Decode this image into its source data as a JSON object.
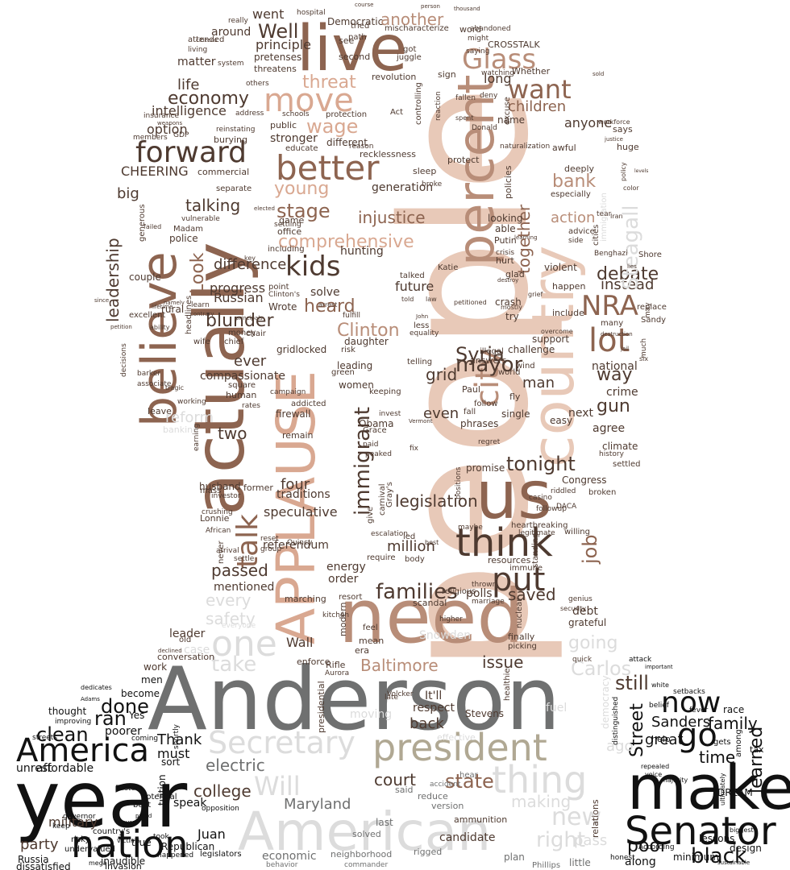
{
  "words": {
    "people": "people",
    "anderson": "Anderson",
    "need": "need",
    "year": "year",
    "make": "make",
    "actually": "actually",
    "applause": "APPLAUSE",
    "american": "American",
    "country": "country",
    "us": "us",
    "live": "live",
    "believe": "believe",
    "percent": "percent",
    "senator": "Senator",
    "president": "president",
    "secretary": "Secretary",
    "nation": "nation",
    "think": "think",
    "america": "America",
    "thing": "thing",
    "one": "one",
    "go": "go",
    "now": "now",
    "move": "move",
    "better": "better",
    "forward": "forward",
    "lot": "lot",
    "nra": "NRA",
    "kids": "kids",
    "put": "put",
    "city": "city",
    "immigrant": "immigrant",
    "talk": "talk",
    "glass": "Glass",
    "want": "want",
    "well": "Well",
    "wage": "wage",
    "threat": "threat",
    "economy": "economy",
    "talking": "talking",
    "comprehensive": "comprehensive",
    "stage": "stage",
    "young": "young",
    "injustice": "injustice",
    "heard": "heard",
    "clinton": "Clinton",
    "syria": "Syria",
    "mayor": "mayor",
    "debate": "debate",
    "instead": "instead",
    "steagall": "Steagall",
    "bank": "bank",
    "action": "action",
    "together": "together",
    "children": "children",
    "leadership": "leadership",
    "look": "Look",
    "blunder": "blunder",
    "difference": "difference",
    "progress": "progress",
    "russian": "Russian",
    "future": "future",
    "solve": "solve",
    "grid": "grid",
    "even": "even",
    "families": "families",
    "legislation": "legislation",
    "tonight": "tonight",
    "job": "job",
    "million": "million",
    "passed": "passed",
    "every": "every",
    "safety": "safety",
    "saved": "saved",
    "wall": "Wall",
    "baltimore": "Baltimore",
    "issue": "issue",
    "going": "going",
    "carlos": "Carlos",
    "still": "still",
    "take": "take",
    "will": "Will",
    "street": "Street",
    "sanders": "Sanders",
    "family": "family",
    "great": "great",
    "time": "time",
    "learned": "learned",
    "black": "black",
    "poor": "poor",
    "right": "right",
    "new": "new",
    "making": "making",
    "court": "court",
    "state": "state",
    "back": "back",
    "college": "college",
    "electric": "electric",
    "maryland": "Maryland",
    "military": "military",
    "party": "party",
    "done": "done",
    "clean": "clean",
    "ran": "ran",
    "thank": "Thank",
    "must": "must",
    "juan": "Juan",
    "speak": "speak",
    "cheering": "CHEERING",
    "big": "big",
    "life": "life",
    "intelligence": "intelligence",
    "option": "option",
    "matter": "matter",
    "around": "around",
    "went": "went",
    "principle": "principle",
    "another": "another",
    "long": "long",
    "anyone": "anyone",
    "gun": "gun",
    "way": "way",
    "crime": "crime",
    "agree": "agree",
    "next": "next",
    "national": "national",
    "man": "man",
    "ever": "ever",
    "compassionate": "compassionate",
    "reform": "reform",
    "two": "two",
    "four": "four",
    "speculative": "speculative",
    "traditions": "traditions",
    "referendum": "referendum",
    "mentioned": "mentioned",
    "energy": "energy",
    "order": "order",
    "polls": "polls",
    "debt": "debt",
    "grateful": "grateful",
    "leader": "leader",
    "case": "case",
    "work": "work",
    "become": "become",
    "men": "men",
    "thought": "thought",
    "poorer": "poorer",
    "affordable": "affordable",
    "unrest": "unrest",
    "russia": "Russia",
    "dissatisfied": "dissatisfied",
    "inaudible": "inaudible",
    "republican": "Republican",
    "true": "true",
    "it_ll": "It'll",
    "respect": "respect",
    "candidate": "candidate",
    "economic": "economic",
    "along": "along",
    "minimum": "minimum",
    "lessons": "lessons",
    "design": "design",
    "dream": "DREAM",
    "crosstalk": "CROSSTALK",
    "word": "word",
    "whether": "Whether",
    "democratic": "Democratic",
    "insurance": "insurance",
    "company": "company",
    "gdp": "GDP",
    "commercial": "commercial",
    "stronger": "stronger",
    "generation": "generation",
    "protect": "protect",
    "police": "police",
    "madam": "Madam",
    "couple": "couple",
    "rural": "rural",
    "excellent": "excellent",
    "wrote": "Wrote",
    "gridlocked": "gridlocked",
    "daughter": "daughter",
    "leading": "leading",
    "women": "women",
    "obama": "Obama",
    "firewall": "firewall",
    "remain": "remain",
    "phrases": "phrases",
    "promise": "promise",
    "rebuild": "rebuild",
    "congress": "Congress",
    "climate": "climate",
    "replace": "replace",
    "sandy": "Sandy",
    "shore": "Shore",
    "many": "many",
    "happen": "happen",
    "include": "include",
    "violent": "violent",
    "glad": "glad",
    "try": "try",
    "support": "support",
    "challenge": "challenge",
    "crash": "crash",
    "hunting": "hunting",
    "lonnie": "Lonnie",
    "husband": "husband",
    "former": "former",
    "quincy": "Quincy",
    "snowden": "Snowden",
    "headlines": "headlines",
    "human": "human",
    "banking": "banking",
    "marching": "marching",
    "finally": "finally",
    "scandal": "scandal",
    "enforce": "enforce",
    "aurora": "Aurora",
    "rifle": "Rifle",
    "presidential": "presidential",
    "healthier": "healthier",
    "see": "see",
    "live_small": "living",
    "second": "second",
    "signs": "sign",
    "revolution": "revolution",
    "public": "public",
    "educate": "educate",
    "separate": "separate",
    "vulnerable": "vulnerable",
    "burying": "burying",
    "reinstating": "reinstating",
    "says": "says",
    "huge": "huge",
    "awful": "awful",
    "deeply": "deeply",
    "especially": "especially",
    "advice": "advice",
    "cities": "cities",
    "putin": "Putin",
    "benghazi": "Benghazi",
    "immigration": "immigration",
    "settled": "settled",
    "history": "history",
    "broken": "broken",
    "easy": "easy",
    "single": "single",
    "fall": "fall",
    "follow": "follow",
    "paul": "Paul",
    "fly": "fly",
    "answers": "answers",
    "world": "world",
    "wind": "wind",
    "illegal": "illegal",
    "telling": "telling",
    "fight": "fight",
    "keeping": "keeping",
    "green": "green",
    "risk": "risk",
    "chair": "chair",
    "money": "money",
    "wife": "wife",
    "chief": "chief",
    "addicted": "addicted",
    "square": "square",
    "campaign": "campaign",
    "investor": "investor",
    "african": "African",
    "crushing": "crushing",
    "mass": "mass",
    "never": "never",
    "group": "group",
    "reset": "reset",
    "give": "give",
    "carnival": "carnival",
    "gray_s": "Gray's",
    "led": "led",
    "best": "best",
    "body": "body",
    "resources": "resources",
    "immune": "immune",
    "willing": "willing",
    "heartbreaking": "heartbreaking",
    "legitimate": "legitimate",
    "followup": "followup",
    "riddled": "riddled",
    "daca": "DACA",
    "casino": "casino",
    "quick": "quick",
    "race": "race",
    "tax": "tax",
    "gets": "gets",
    "among": "among",
    "ago": "ago",
    "setbacks": "setbacks",
    "attack": "attack",
    "important": "important",
    "help": "help",
    "pass": "pass",
    "plan": "plan",
    "little": "little",
    "phillips": "Phillips",
    "rigged": "rigged",
    "neighborhood": "neighborhood",
    "behavior": "behavior",
    "commander": "commander",
    "legislators": "legislators",
    "invasion": "invasion",
    "mega": "mega",
    "opposition": "opposition",
    "sort": "sort",
    "coming": "coming",
    "improving": "improving",
    "streets": "streets",
    "shortly": "shortly",
    "eastern": "Eastern",
    "governor": "governor",
    "keep": "keep",
    "tuition": "tuition",
    "yes": "Yes",
    "conversation": "conversation",
    "old": "old",
    "declined": "declined",
    "dedicates": "dedicates",
    "adams": "Adams",
    "everyone": "everyone",
    "higher": "higher",
    "feel": "feel",
    "era": "era",
    "mean": "mean",
    "modern": "modern",
    "kitchen": "kitchen",
    "religious": "religious",
    "resort": "resort",
    "marriage": "marriage",
    "thrown": "thrown",
    "nuclear": "nuclear",
    "picking": "picking",
    "genius": "genius",
    "security": "security",
    "standing": "standing",
    "require": "require",
    "ammunition": "ammunition",
    "solved": "solved",
    "reduce": "reduce",
    "accident": "accident",
    "version": "version",
    "said": "said",
    "last": "last",
    "hear": "hear",
    "volcker": "Volcker",
    "stevens": "Stevens",
    "effective": "effective",
    "moving": "moving",
    "late": "late",
    "fuel": "fuel",
    "democracy": "democracy",
    "relations": "relations",
    "honest": "honest",
    "distinguished": "distinguished",
    "belief": "belief",
    "white": "white",
    "fever": "fever",
    "voice": "voice",
    "majority": "majority",
    "ultimately": "ultimately",
    "according": "According",
    "biggest": "biggest",
    "sustainable": "sustainable",
    "repealed": "repealed",
    "workforce": "workforce",
    "policy": "policy",
    "color": "color",
    "levels": "levels",
    "justice": "justice",
    "sold": "sold",
    "lies": "lies",
    "may": "may",
    "jail": "jail",
    "six": "six",
    "much": "much",
    "destruction": "destruction",
    "grief": "grief",
    "overcome": "overcome",
    "mostly": "mostly",
    "destroy": "destroy",
    "petitioned": "petitioned",
    "told": "told",
    "law": "law",
    "talked": "talked",
    "less": "less",
    "equality": "equality",
    "john": "John",
    "fulfill": "fulfill",
    "point": "point",
    "clinton_s": "Clinton's",
    "arrest": "arrest",
    "principals": "principals",
    "contrary": "contrary",
    "ability": "ability",
    "petition": "petition",
    "since": "since",
    "lifetime": "lifetime",
    "namely": "namely",
    "learn": "learn",
    "including": "including",
    "office": "office",
    "settling": "settling",
    "game": "game",
    "key": "key",
    "elected": "elected",
    "failed": "failed",
    "generous": "generous",
    "katie": "Katie",
    "tear": "tear",
    "iran": "Iran",
    "side": "side",
    "hurt": "hurt",
    "crisis": "crisis",
    "learning": "learning",
    "able": "able",
    "looking": "looking",
    "policies": "policies",
    "naturalization": "naturalization",
    "excuse": "excuse",
    "sleep": "sleep",
    "broke": "broke",
    "recklessness": "recklessness",
    "reason": "reason",
    "different": "different",
    "protection": "protection",
    "schools": "schools",
    "act": "Act",
    "controlling": "controlling",
    "reaction": "reaction",
    "spent": "spent",
    "fallen": "fallen",
    "deny": "deny",
    "watching": "watching",
    "name": "name",
    "donald": "Donald",
    "path": "path",
    "tried": "tried",
    "got": "got",
    "juggle": "juggle",
    "pretenses": "pretenses",
    "threatens": "threatens",
    "system": "system",
    "others": "others",
    "address": "address",
    "members": "members",
    "weapons": "weapons",
    "attended": "attended",
    "citizens": "citizens",
    "really": "really",
    "hospital": "hospital",
    "mischaracterize": "mischaracterize",
    "thousand": "thousand",
    "might": "might",
    "saying": "saying",
    "abandoned": "abandoned",
    "person": "person",
    "course": "course",
    "tragic": "tragic",
    "barker": "barker",
    "associate": "associate",
    "decisions": "decisions",
    "leave": "leave",
    "working": "working",
    "rates": "rates",
    "earning": "earning",
    "potential": "potential",
    "built": "built",
    "undervalued": "undervalued",
    "risky": "risky",
    "country_s": "country's",
    "seven": "seven",
    "victims": "victims",
    "proud": "proud",
    "happened": "happened",
    "took": "took",
    "arrival": "arrival",
    "settle": "settle",
    "maybe": "maybe",
    "escalation": "escalation",
    "positions": "positions",
    "regret": "regret",
    "invest": "invest",
    "vermont": "Vermont",
    "grace": "Grace",
    "peaked": "peaked",
    "paid": "paid",
    "fix": "fix"
  },
  "palette": {
    "black": "#111111",
    "dark_brown": "#4e3a30",
    "brown": "#8d6450",
    "tan": "#b88d78",
    "peach": "#d9a891",
    "light_peach": "#e8c9b8",
    "gray": "#6f7070",
    "light_gray": "#dcdcdc",
    "khaki": "#b0a893"
  }
}
